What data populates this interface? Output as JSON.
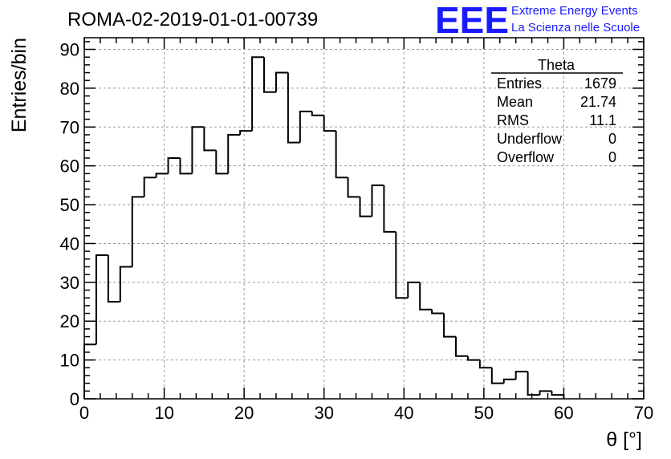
{
  "chart_data": {
    "type": "bar",
    "title": "ROMA-02-2019-01-01-00739",
    "xlabel": "θ [°]",
    "ylabel": "Entries/bin",
    "xlim": [
      0,
      70
    ],
    "ylim": [
      0,
      93
    ],
    "x_ticks": [
      0,
      10,
      20,
      30,
      40,
      50,
      60,
      70
    ],
    "y_ticks": [
      0,
      10,
      20,
      30,
      40,
      50,
      60,
      70,
      80,
      90
    ],
    "grid": true,
    "bin_width": 1.5,
    "bin_start": 0,
    "values": [
      14,
      37,
      25,
      34,
      52,
      57,
      58,
      62,
      58,
      70,
      64,
      58,
      68,
      69,
      88,
      79,
      84,
      66,
      74,
      73,
      69,
      57,
      52,
      47,
      55,
      43,
      26,
      30,
      23,
      22,
      16,
      11,
      10,
      8,
      4,
      5,
      7,
      1,
      2,
      1
    ],
    "stats_box": {
      "title": "Theta",
      "rows": [
        {
          "label": "Entries",
          "value": "1679"
        },
        {
          "label": "Mean",
          "value": "21.74"
        },
        {
          "label": "RMS",
          "value": "11.1"
        },
        {
          "label": "Underflow",
          "value": "0"
        },
        {
          "label": "Overflow",
          "value": "0"
        }
      ]
    },
    "logo": {
      "mark": "EEE",
      "line1": "Extreme Energy Events",
      "line2": "La Scienza nelle Scuole",
      "color": "#1a1aff"
    }
  }
}
